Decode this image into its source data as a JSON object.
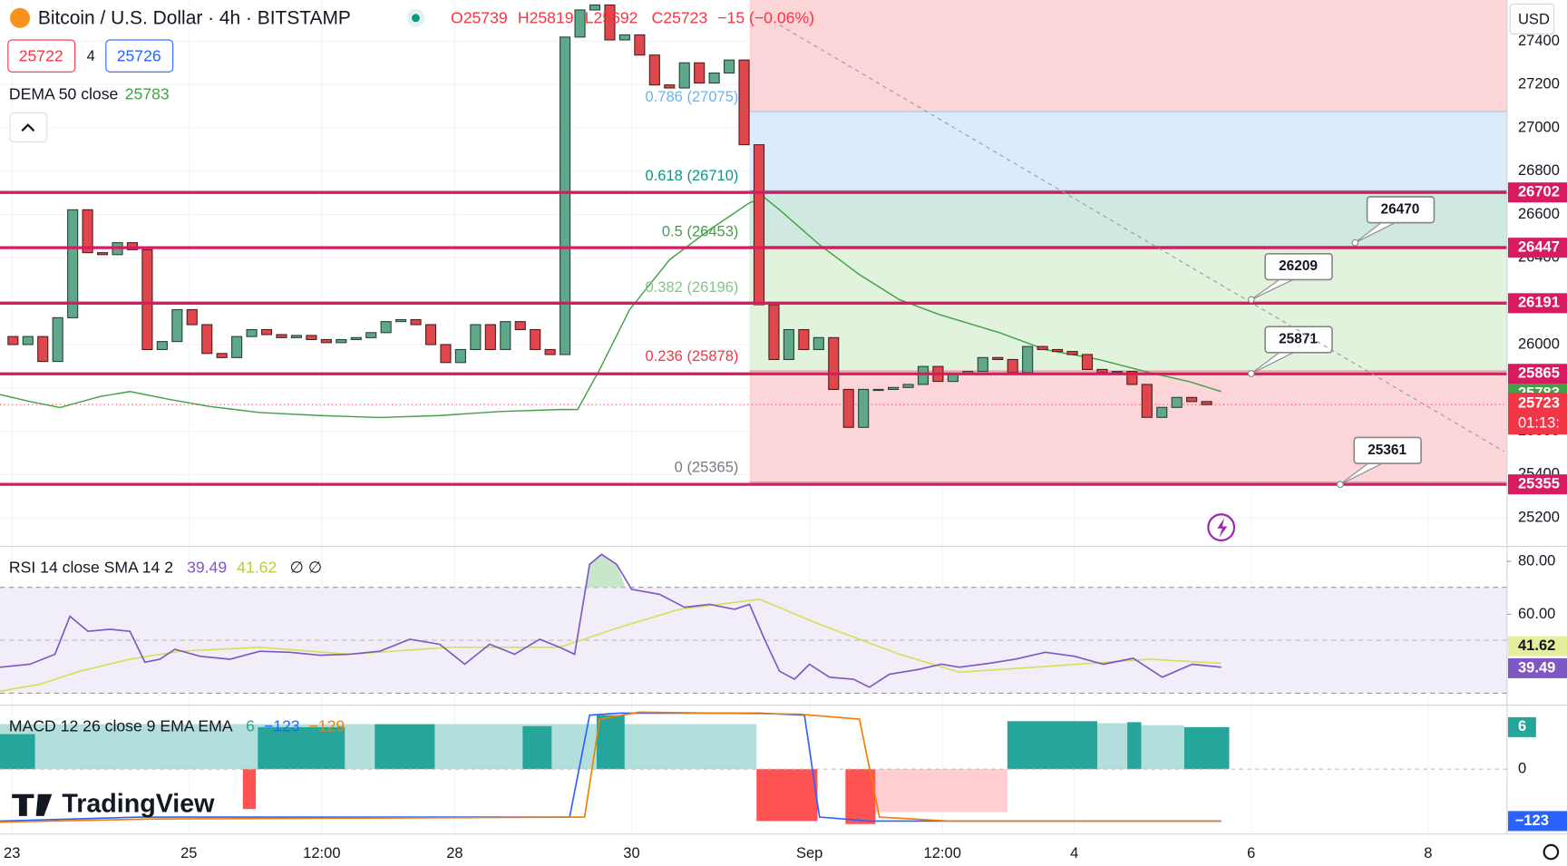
{
  "header": {
    "symbol": "Bitcoin / U.S. Dollar · 4h · BITSTAMP",
    "ohlc": [
      "O25739",
      "H25819",
      "L25692",
      "C25723",
      "−15 (−0.06%)"
    ],
    "bid": "25722",
    "spread": "4",
    "ask": "25726",
    "currency": "USD"
  },
  "dema": {
    "label": "DEMA 50 close",
    "value": "25783"
  },
  "chart_data": {
    "type": "candlestick",
    "first_open": 26037,
    "close": [
      26000,
      26037,
      25922,
      26124,
      26622,
      26424,
      26415,
      26470,
      26438,
      25977,
      26014,
      26161,
      26092,
      25959,
      25940,
      26037,
      26069,
      26046,
      26032,
      26042,
      26023,
      26009,
      26023,
      26032,
      26055,
      26106,
      26115,
      26092,
      26000,
      25917,
      25977,
      26092,
      25977,
      26106,
      26069,
      25977,
      25954,
      27419,
      27544,
      27567,
      27406,
      27429,
      27336,
      27198,
      27184,
      27300,
      27207,
      27253,
      27313,
      26922,
      26184,
      25931,
      26069,
      25977,
      26032,
      25793,
      25618,
      25793,
      25793,
      25802,
      25816,
      25899,
      25830,
      25866,
      25876,
      25940,
      25931,
      25871,
      25991,
      25977,
      25968,
      25954,
      25885,
      25871,
      25876,
      25816,
      25664,
      25710,
      25756,
      25737,
      25723
    ],
    "ylim": [
      25078,
      27590
    ],
    "yticks": [
      27400,
      27200,
      27000,
      26800,
      26600,
      26400,
      26200,
      26000,
      25800,
      25600,
      25400,
      25200
    ],
    "xticks": [
      "23",
      "25",
      "12:00",
      "28",
      "30",
      "Sep",
      "12:00",
      "4",
      "6",
      "8"
    ],
    "price_levels": [
      26702,
      26447,
      26191,
      25865,
      25355
    ],
    "fib_levels": [
      {
        "value": 27075,
        "label": "0.786 (27075)"
      },
      {
        "value": 26710,
        "label": "0.618 (26710)"
      },
      {
        "value": 26453,
        "label": "0.5 (26453)"
      },
      {
        "value": 26196,
        "label": "0.382 (26196)"
      },
      {
        "value": 25878,
        "label": "0.236 (25878)"
      },
      {
        "value": 25365,
        "label": "0 (25365)"
      }
    ],
    "dema_tag": 25783,
    "last_price": 25723,
    "countdown": "01:13:",
    "callouts": [
      26470,
      26209,
      25871,
      25361
    ]
  },
  "rsi": {
    "label": "RSI 14 close SMA 14 2",
    "rsi": "39.49",
    "sma": "41.62",
    "extra": "∅ ∅",
    "yticks": [
      {
        "value": 80,
        "label": "80.00"
      },
      {
        "value": 60,
        "label": "60.00"
      }
    ]
  },
  "macd": {
    "label": "MACD 12 26 close 9 EMA EMA",
    "hist": "6",
    "macd": "−123",
    "signal": "−129",
    "yticks": [
      0
    ]
  },
  "logo": "TradingView"
}
